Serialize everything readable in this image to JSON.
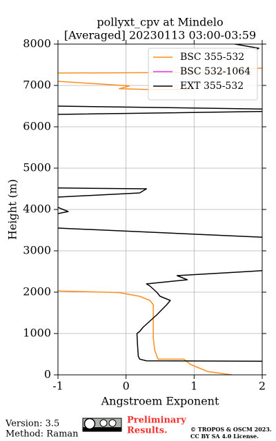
{
  "chart_data": {
    "type": "line",
    "title": "pollyxt_cpv at Mindelo",
    "subtitle": "[Averaged] 20230113 03:00-03:59",
    "x_label": "Angstroem Exponent",
    "y_label": "Height (m)",
    "xlim": [
      -1,
      2
    ],
    "xticks": [
      -1,
      0,
      1,
      2
    ],
    "ylim": [
      0,
      8000
    ],
    "yticks": [
      0,
      1000,
      2000,
      3000,
      4000,
      5000,
      6000,
      7000,
      8000
    ],
    "grid": true,
    "legend": "upper right",
    "series": [
      {
        "name": "BSC 355-532",
        "color": "#ff8c1a",
        "x": [
          1.56,
          1.2,
          0.95,
          0.85,
          0.47,
          0.42,
          0.4,
          0.4,
          0.35,
          0.2,
          -0.1,
          -1,
          null,
          -1,
          -0.05,
          0.05,
          -0.1,
          0.4,
          1.0,
          null,
          -1,
          0.4,
          1.1,
          2
        ],
        "values": [
          0,
          80,
          250,
          380,
          380,
          600,
          900,
          1700,
          1800,
          1900,
          1990,
          2030,
          null,
          7100,
          7000,
          6990,
          6920,
          6900,
          6900,
          null,
          7300,
          7310,
          7320,
          7420
        ]
      },
      {
        "name": "BSC 532-1064",
        "color": "#e633e6",
        "x": [],
        "values": []
      },
      {
        "name": "EXT 355-532",
        "color": "#000000",
        "x": [
          2,
          0.3,
          0.2,
          0.18,
          0.17,
          0.16,
          0.2,
          0.25,
          0.35,
          0.45,
          0.6,
          0.65,
          0.5,
          0.45,
          0.35,
          0.3,
          0.9,
          0.75,
          1.8,
          2,
          null,
          2,
          -1,
          null,
          -1,
          -0.85,
          -1,
          null,
          -1,
          0.2,
          0.3,
          -1,
          null,
          -1,
          2,
          null,
          -1,
          2,
          null,
          1.6,
          1.95,
          1.9
        ],
        "values": [
          330,
          340,
          380,
          450,
          700,
          1000,
          1050,
          1150,
          1300,
          1450,
          1700,
          1800,
          1900,
          2000,
          2150,
          2200,
          2300,
          2400,
          2500,
          2520,
          null,
          3330,
          3550,
          null,
          3900,
          3950,
          4050,
          null,
          4300,
          4400,
          4500,
          4520,
          null,
          6300,
          6370,
          null,
          6500,
          6430,
          null,
          8000,
          7900,
          7850
        ]
      }
    ]
  },
  "footer": {
    "version": "Version: 3.5",
    "method": "Method: Raman",
    "preliminary": "Preliminary",
    "results": "Results.",
    "copyright": "© TROPOS & OSCM 2023.",
    "license": "CC BY SA 4.0 License."
  }
}
